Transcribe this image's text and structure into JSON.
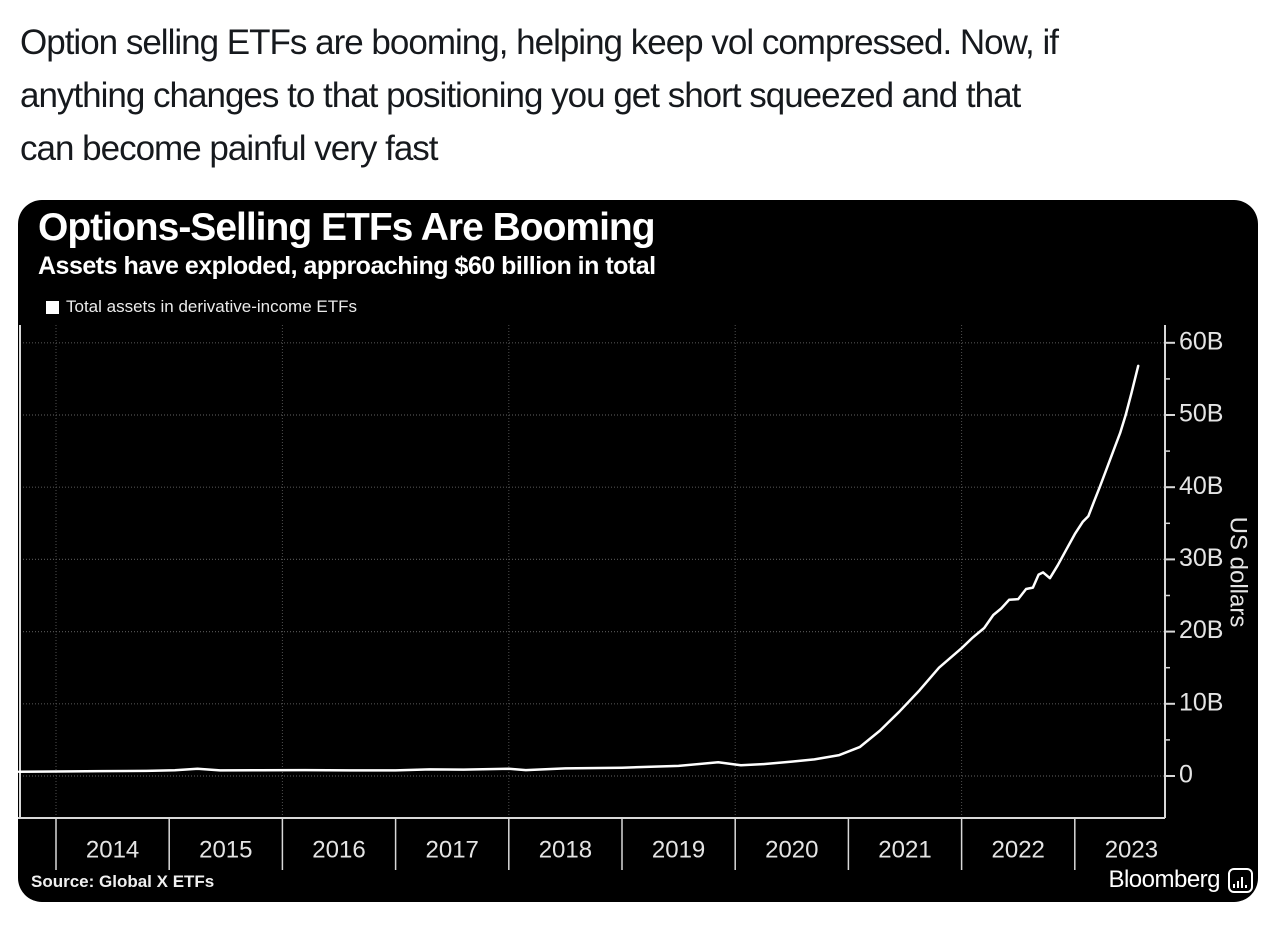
{
  "tweet": {
    "lines": [
      "Option selling ETFs are booming, helping keep vol compressed. Now, if",
      "anything changes to that positioning you get short squeezed and that",
      "can become painful very fast"
    ]
  },
  "chart": {
    "title": "Options-Selling ETFs Are Booming",
    "subtitle": "Assets have exploded, approaching $60 billion in total",
    "legend": "Total assets in derivative-income ETFs",
    "source": "Source: Global X ETFs",
    "brand": "Bloomberg",
    "ylabel": "US dollars"
  },
  "colors": {
    "page_bg": "#ffffff",
    "tweet_text": "#16191d",
    "card_bg": "#000000",
    "line": "#ffffff",
    "grid": "#4f4f4f",
    "axis": "#d9d9d9",
    "label": "#e4e4e4"
  },
  "chart_data": {
    "type": "line",
    "title": "Options-Selling ETFs Are Booming",
    "subtitle": "Assets have exploded, approaching $60 billion in total",
    "ylabel": "US dollars",
    "xlabel": "",
    "legend_entries": [
      "Total assets in derivative-income ETFs"
    ],
    "legend_position": "top-left",
    "grid": "dotted",
    "x_base": 2014,
    "xlim": [
      2013.66,
      2023.8
    ],
    "ylim": [
      0,
      60
    ],
    "x_tick_years": [
      2014,
      2015,
      2016,
      2017,
      2018,
      2019,
      2020,
      2021,
      2022,
      2023
    ],
    "x_tick_labels": [
      "2014",
      "2015",
      "2016",
      "2017",
      "2018",
      "2019",
      "2020",
      "2021",
      "2022",
      "2023"
    ],
    "x_gridline_years": [
      2014,
      2016,
      2018,
      2020,
      2022
    ],
    "y_ticks": [
      0,
      10,
      20,
      30,
      40,
      50,
      60
    ],
    "y_tick_labels": [
      "0",
      "10B",
      "20B",
      "30B",
      "40B",
      "50B",
      "60B"
    ],
    "y_minor_ticks": [
      5,
      15,
      25,
      35,
      45,
      55
    ],
    "source": "Source: Global X ETFs",
    "series": [
      {
        "name": "Total assets in derivative-income ETFs",
        "color": "#ffffff",
        "units": "billions of US dollars",
        "points": [
          [
            2013.67,
            0.6
          ],
          [
            2014.0,
            0.62
          ],
          [
            2014.4,
            0.68
          ],
          [
            2014.8,
            0.7
          ],
          [
            2015.05,
            0.8
          ],
          [
            2015.25,
            1.0
          ],
          [
            2015.45,
            0.78
          ],
          [
            2015.8,
            0.8
          ],
          [
            2016.2,
            0.82
          ],
          [
            2016.6,
            0.78
          ],
          [
            2017.0,
            0.78
          ],
          [
            2017.3,
            0.92
          ],
          [
            2017.6,
            0.88
          ],
          [
            2018.0,
            1.0
          ],
          [
            2018.15,
            0.82
          ],
          [
            2018.5,
            1.05
          ],
          [
            2019.0,
            1.15
          ],
          [
            2019.5,
            1.4
          ],
          [
            2019.85,
            1.9
          ],
          [
            2020.05,
            1.5
          ],
          [
            2020.25,
            1.65
          ],
          [
            2020.5,
            2.0
          ],
          [
            2020.7,
            2.3
          ],
          [
            2020.92,
            2.9
          ],
          [
            2021.1,
            4.0
          ],
          [
            2021.28,
            6.3
          ],
          [
            2021.45,
            8.9
          ],
          [
            2021.63,
            11.9
          ],
          [
            2021.8,
            15.0
          ],
          [
            2022.0,
            17.7
          ],
          [
            2022.1,
            19.2
          ],
          [
            2022.2,
            20.5
          ],
          [
            2022.28,
            22.3
          ],
          [
            2022.35,
            23.2
          ],
          [
            2022.42,
            24.4
          ],
          [
            2022.5,
            24.5
          ],
          [
            2022.57,
            25.9
          ],
          [
            2022.63,
            26.1
          ],
          [
            2022.68,
            27.9
          ],
          [
            2022.72,
            28.2
          ],
          [
            2022.78,
            27.4
          ],
          [
            2022.85,
            29.2
          ],
          [
            2022.92,
            31.2
          ],
          [
            2023.0,
            33.5
          ],
          [
            2023.07,
            35.2
          ],
          [
            2023.12,
            36.0
          ],
          [
            2023.17,
            38.0
          ],
          [
            2023.22,
            40.0
          ],
          [
            2023.28,
            42.5
          ],
          [
            2023.34,
            45.0
          ],
          [
            2023.4,
            47.5
          ],
          [
            2023.45,
            50.0
          ],
          [
            2023.5,
            53.0
          ],
          [
            2023.56,
            56.8
          ]
        ]
      }
    ]
  }
}
